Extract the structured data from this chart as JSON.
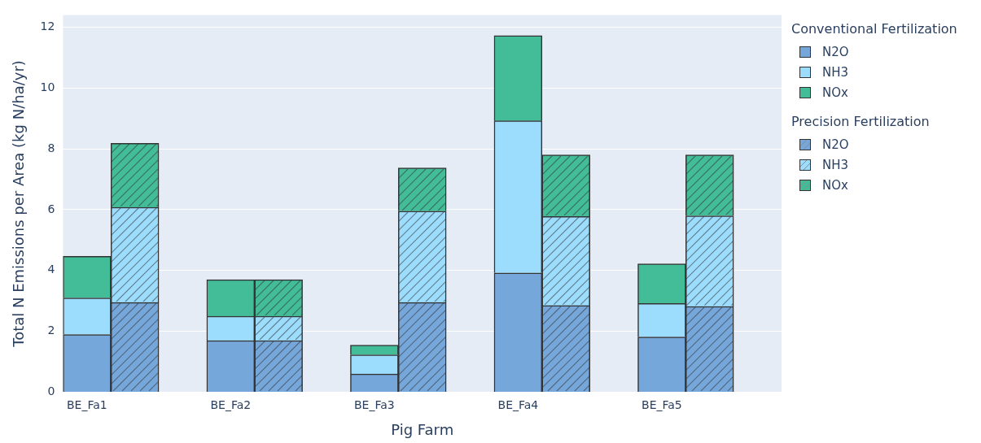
{
  "chart_data": {
    "type": "bar",
    "stacked": true,
    "xlabel": "Pig Farm",
    "ylabel": "Total N Emissions per Area (kg N/ha/yr)",
    "legend_title": [
      "Conventional Fertilization",
      "Precision Fertilization"
    ],
    "categories": [
      "BE_Fa1",
      null,
      null,
      "BE_Fa2",
      null,
      null,
      "BE_Fa3",
      null,
      null,
      "BE_Fa4",
      null,
      null,
      "BE_Fa5",
      null,
      null
    ],
    "series": [
      {
        "name": "N2O",
        "color": "#76a7db",
        "values": [
          1.9,
          null,
          null,
          1.7,
          null,
          null,
          0.6,
          null,
          null,
          3.92,
          null,
          null,
          1.82,
          null,
          null
        ]
      },
      {
        "name": "NH3",
        "color": "#9cdcfc",
        "values": [
          1.2,
          null,
          null,
          0.8,
          null,
          null,
          0.63,
          null,
          null,
          5.0,
          null,
          null,
          1.1,
          null,
          null
        ]
      },
      {
        "name": "NOx",
        "color": "#43bd98",
        "values": [
          1.37,
          null,
          null,
          1.2,
          null,
          null,
          0.32,
          null,
          null,
          2.8,
          null,
          null,
          1.3,
          null,
          null
        ]
      },
      {
        "name": "N2O",
        "color": "#76a7db",
        "values": [
          null,
          2.95,
          null,
          null,
          1.7,
          null,
          null,
          2.95,
          null,
          null,
          2.85,
          null,
          null,
          2.82,
          null
        ]
      },
      {
        "name": "NH3",
        "color": "#9cdcfc",
        "values": [
          null,
          3.13,
          null,
          null,
          0.8,
          null,
          null,
          3.0,
          null,
          null,
          2.93,
          null,
          null,
          2.98,
          null
        ]
      },
      {
        "name": "NOx",
        "color": "#43bd98",
        "values": [
          null,
          2.1,
          null,
          null,
          1.2,
          null,
          null,
          1.42,
          null,
          null,
          2.02,
          null,
          null,
          2.0,
          null
        ]
      }
    ],
    "ylim": [
      0,
      12.4
    ],
    "yticks": [
      0,
      2,
      4,
      6,
      8,
      10,
      12
    ],
    "grid": "y",
    "legend": "top right"
  }
}
